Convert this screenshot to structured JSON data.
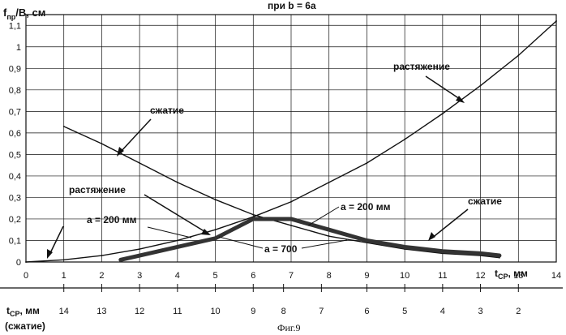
{
  "chart_data": {
    "type": "line",
    "title": "при  b = 6a",
    "ylabel": "f_пр/B, см",
    "xlabel": "t_СР, мм",
    "x_range": [
      0,
      14
    ],
    "y_range": [
      0,
      1.15
    ],
    "x_ticks": [
      0,
      1,
      2,
      3,
      4,
      5,
      6,
      7,
      8,
      9,
      10,
      11,
      12,
      13,
      14
    ],
    "y_ticks": [
      "0",
      "0,1",
      "0,2",
      "0,3",
      "0,4",
      "0,5",
      "0,6",
      "0,7",
      "0,8",
      "0,9",
      "1",
      "1,1"
    ],
    "grid": true,
    "secondary_axis": {
      "label_line1": "t_СР, мм",
      "label_line2": "(сжатие)",
      "ticks": [
        {
          "label": "14",
          "x": 1
        },
        {
          "label": "13",
          "x": 2
        },
        {
          "label": "12",
          "x": 3
        },
        {
          "label": "11",
          "x": 4
        },
        {
          "label": "10",
          "x": 5
        },
        {
          "label": "9",
          "x": 6
        },
        {
          "label": "8",
          "x": 6.8
        },
        {
          "label": "7",
          "x": 7.8
        },
        {
          "label": "6",
          "x": 9
        },
        {
          "label": "5",
          "x": 10
        },
        {
          "label": "4",
          "x": 11
        },
        {
          "label": "3",
          "x": 12
        },
        {
          "label": "2",
          "x": 13
        }
      ]
    },
    "series": [
      {
        "name": "растяжение",
        "x": [
          0,
          1,
          2,
          3,
          4,
          5,
          6,
          7,
          8,
          9,
          10,
          11,
          12,
          13,
          14
        ],
        "values": [
          0,
          0.01,
          0.03,
          0.06,
          0.1,
          0.15,
          0.21,
          0.28,
          0.37,
          0.46,
          0.57,
          0.69,
          0.82,
          0.96,
          1.12
        ]
      },
      {
        "name": "сжатие",
        "x": [
          1,
          2,
          3,
          4,
          5,
          6,
          7,
          8,
          9,
          10,
          11,
          12,
          12.5
        ],
        "values": [
          0.63,
          0.55,
          0.46,
          0.37,
          0.29,
          0.22,
          0.17,
          0.12,
          0.09,
          0.06,
          0.04,
          0.03,
          0.02
        ]
      },
      {
        "name": "растяжение a = 200 мм",
        "x": [
          2.5,
          3,
          4,
          5,
          6,
          7,
          8,
          9,
          10,
          11,
          12,
          12.5
        ],
        "values": [
          0.01,
          0.03,
          0.07,
          0.11,
          0.2,
          0.2,
          0.15,
          0.1,
          0.07,
          0.05,
          0.04,
          0.03
        ]
      }
    ],
    "annotations": [
      "растяжение",
      "сжатие",
      "растяжение",
      "a = 200 мм",
      "a = 700",
      "a = 200 мм",
      "сжатие"
    ]
  },
  "caption": "Фиг.9"
}
